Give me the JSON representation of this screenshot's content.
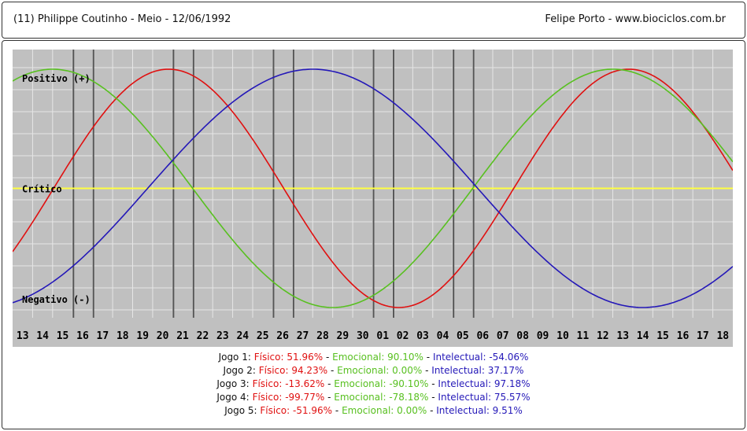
{
  "header": {
    "left_text": "(11)  Philippe Coutinho - Meio -  12/06/1992",
    "right_text": "Felipe Porto   -   www.biociclos.com.br"
  },
  "chart_data": {
    "type": "line",
    "title": "",
    "xlabel": "",
    "ylabel": "",
    "y_axis_labels": {
      "top": "Positivo (+)",
      "middle": "Crítico",
      "bottom": "Negativo (-)"
    },
    "ylim": [
      -100,
      100
    ],
    "x_categories": [
      "13",
      "14",
      "15",
      "16",
      "17",
      "18",
      "19",
      "20",
      "21",
      "22",
      "23",
      "24",
      "25",
      "26",
      "27",
      "28",
      "29",
      "30",
      "01",
      "02",
      "03",
      "04",
      "05",
      "06",
      "07",
      "08",
      "09",
      "10",
      "11",
      "12",
      "13",
      "14",
      "15",
      "16",
      "17",
      "18"
    ],
    "game_marker_categories": [
      "16",
      "17",
      "21",
      "22",
      "26",
      "27",
      "01",
      "02",
      "05",
      "06"
    ],
    "grid": true,
    "series": [
      {
        "name": "Físico",
        "color": "#e01010",
        "period": 23,
        "values_at_first_x": -57,
        "peak_x_index": 7.8
      },
      {
        "name": "Emocional",
        "color": "#58c020",
        "period": 28,
        "peak_x_index": 2.0
      },
      {
        "name": "Intelectual",
        "color": "#2418b8",
        "period": 33,
        "peak_x_index": 15.0
      }
    ],
    "colors": {
      "background": "#c0c0c0",
      "grid": "#e6e6e6",
      "critical_line": "#ffff40",
      "marker": "#555555"
    }
  },
  "stats": {
    "fisico_label": "Físico",
    "emocional_label": "Emocional",
    "intelectual_label": "Intelectual",
    "rows": [
      {
        "label": "Jogo 1:",
        "fisico": "51.96%",
        "emocional": "90.10%",
        "intelectual": "-54.06%"
      },
      {
        "label": "Jogo 2:",
        "fisico": "94.23%",
        "emocional": "0.00%",
        "intelectual": "37.17%"
      },
      {
        "label": "Jogo 3:",
        "fisico": "-13.62%",
        "emocional": "-90.10%",
        "intelectual": "97.18%"
      },
      {
        "label": "Jogo 4:",
        "fisico": "-99.77%",
        "emocional": "-78.18%",
        "intelectual": "75.57%"
      },
      {
        "label": "Jogo 5:",
        "fisico": "-51.96%",
        "emocional": "0.00%",
        "intelectual": "9.51%"
      }
    ]
  }
}
